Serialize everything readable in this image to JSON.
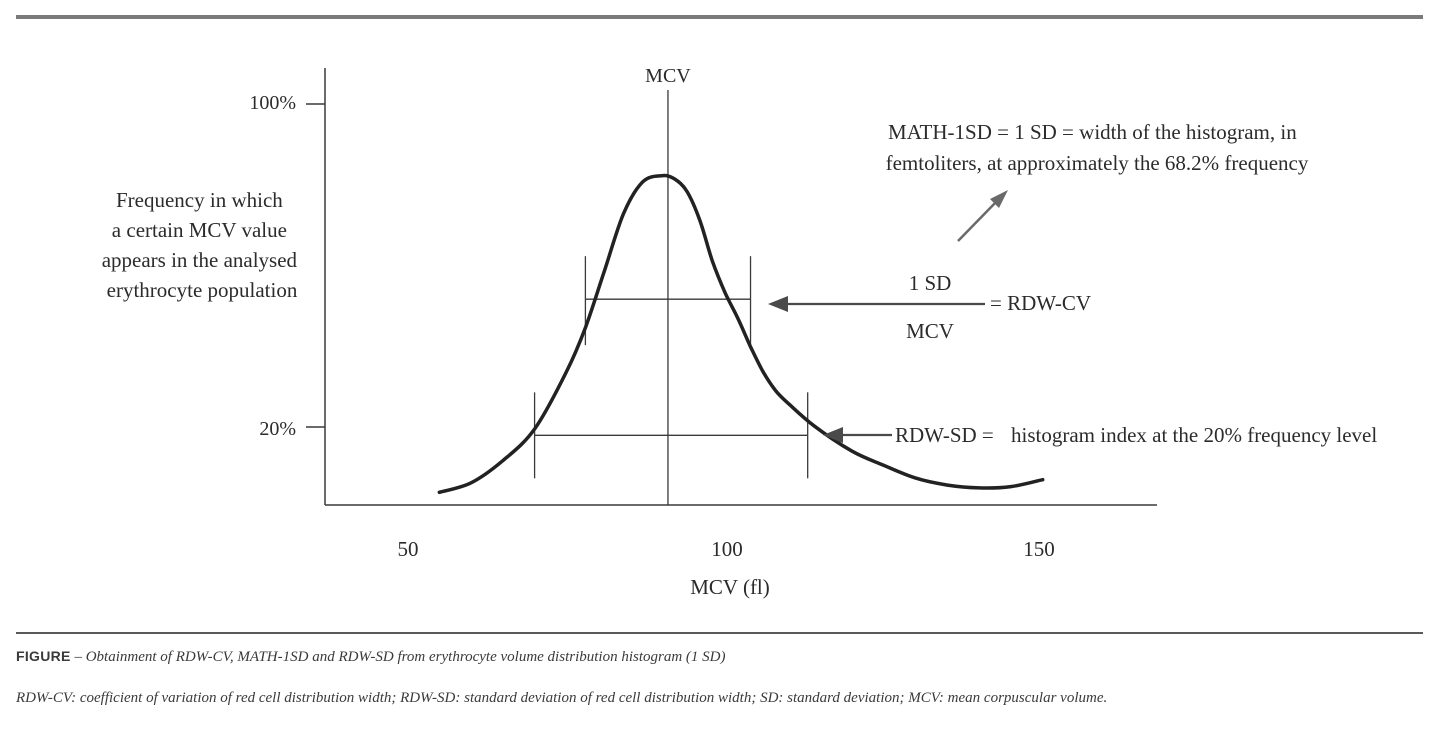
{
  "chart_data": {
    "type": "line",
    "title": "",
    "xlabel": "MCV (fl)",
    "ylabel": "Frequency in which a certain MCV value appears in the analysed erythrocyte population",
    "ylabel_lines": [
      "Frequency in which",
      "a certain MCV value",
      "appears in the analysed",
      "erythrocyte population"
    ],
    "x_ticks": [
      50,
      100,
      150
    ],
    "y_ticks": [
      {
        "value": 100,
        "label": "100%"
      },
      {
        "value": 20,
        "label": "20%"
      }
    ],
    "xlim": [
      37,
      168
    ],
    "ylim": [
      -4,
      134
    ],
    "series": [
      {
        "x": [
          55,
          60,
          65,
          70,
          75,
          78,
          81,
          84,
          87,
          90,
          92,
          94,
          96,
          98,
          100,
          102,
          104,
          106,
          108,
          110,
          114,
          120,
          125,
          130,
          135,
          140,
          145,
          150
        ],
        "y": [
          0,
          3,
          10,
          20,
          38,
          52,
          70,
          88,
          98,
          100,
          99,
          95,
          86,
          73,
          63,
          55,
          46,
          38,
          32,
          28,
          21,
          13,
          8.5,
          4.5,
          2.3,
          1.4,
          1.8,
          4
        ]
      }
    ],
    "mcv_line": {
      "x": 91,
      "label": "MCV"
    },
    "rdw_cv_band": {
      "y": 61,
      "x1": 78,
      "x2": 104
    },
    "rdw_sd_band": {
      "y": 18,
      "x1": 70,
      "x2": 113
    }
  },
  "annotations": {
    "math1sd_lines": [
      "MATH-1SD = 1 SD = width of the histogram, in",
      "femtoliters, at approximately the 68.2% frequency"
    ],
    "rdw_cv_numerator": "1 SD",
    "rdw_cv_denominator": "MCV",
    "rdw_cv_result": "= RDW-CV",
    "rdw_sd_label": "RDW-SD =",
    "rdw_sd_text": "histogram index at the 20% frequency level"
  },
  "caption": {
    "lead": "FIGURE",
    "dash": " – ",
    "title": "Obtainment of RDW-CV, MATH-1SD and RDW-SD from erythrocyte volume distribution histogram (1 SD)",
    "note": "RDW-CV: coefficient of variation of red cell distribution width; RDW-SD: standard deviation of red cell distribution width; SD: standard deviation; MCV: mean corpuscular volume."
  },
  "colors": {
    "ink": "#2b2b2b",
    "rule": "#7a7a7a",
    "curve": "#222222"
  }
}
